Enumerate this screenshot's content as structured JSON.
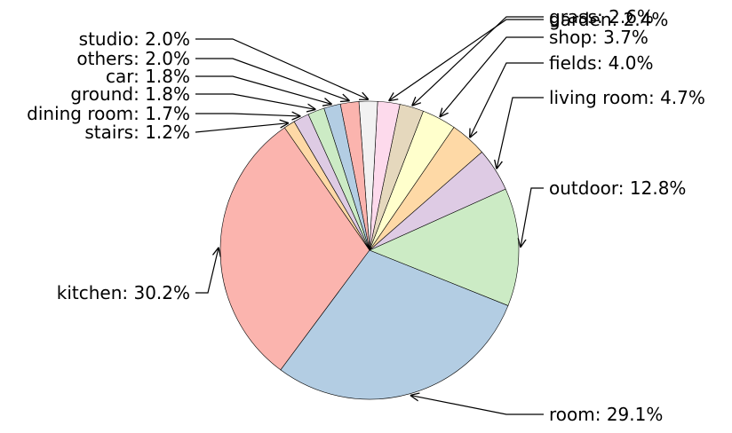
{
  "chart_data": {
    "type": "pie",
    "title": "",
    "slices": [
      {
        "label": "kitchen",
        "value": 30.2,
        "text": "kitchen: 30.2%",
        "color": "#fbb4ae"
      },
      {
        "label": "room",
        "value": 29.1,
        "text": "room: 29.1%",
        "color": "#b3cde3"
      },
      {
        "label": "outdoor",
        "value": 12.8,
        "text": "outdoor: 12.8%",
        "color": "#ccebc5"
      },
      {
        "label": "living room",
        "value": 4.7,
        "text": "living room: 4.7%",
        "color": "#decbe4"
      },
      {
        "label": "fields",
        "value": 4.0,
        "text": "fields: 4.0%",
        "color": "#fed9a6"
      },
      {
        "label": "shop",
        "value": 3.7,
        "text": "shop: 3.7%",
        "color": "#ffffcc"
      },
      {
        "label": "grass",
        "value": 2.6,
        "text": "grass: 2.6%",
        "color": "#e5d8bd"
      },
      {
        "label": "garden",
        "value": 2.4,
        "text": "garden: 2.4%",
        "color": "#fddaec"
      },
      {
        "label": "studio",
        "value": 2.0,
        "text": "studio: 2.0%",
        "color": "#f2f2f2"
      },
      {
        "label": "others",
        "value": 2.0,
        "text": "others: 2.0%",
        "color": "#fbb4ae"
      },
      {
        "label": "car",
        "value": 1.8,
        "text": "car: 1.8%",
        "color": "#b3cde3"
      },
      {
        "label": "ground",
        "value": 1.8,
        "text": "ground: 1.8%",
        "color": "#ccebc5"
      },
      {
        "label": "dining room",
        "value": 1.7,
        "text": "dining room: 1.7%",
        "color": "#decbe4"
      },
      {
        "label": "stairs",
        "value": 1.2,
        "text": "stairs: 1.2%",
        "color": "#fed9a6"
      }
    ]
  }
}
